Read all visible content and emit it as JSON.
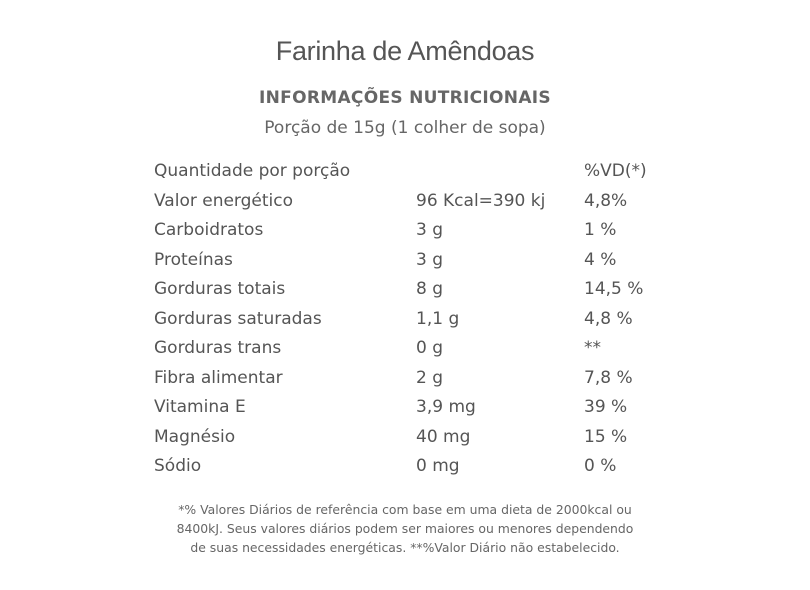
{
  "product_title": "Farinha de Amêndoas",
  "section_title": "INFORMAÇÕES NUTRICIONAIS",
  "serving": "Porção de 15g (1 colher de sopa)",
  "table": {
    "header": {
      "name": "Quantidade por porção",
      "amount": "",
      "vd": "%VD(*)"
    },
    "rows": [
      {
        "name": "Valor energético",
        "amount": "96 Kcal=390 kj",
        "vd": "4,8%"
      },
      {
        "name": "Carboidratos",
        "amount": "3 g",
        "vd": "1 %"
      },
      {
        "name": "Proteínas",
        "amount": "3 g",
        "vd": "4 %"
      },
      {
        "name": "Gorduras totais",
        "amount": "8 g",
        "vd": "14,5 %"
      },
      {
        "name": "Gorduras saturadas",
        "amount": "1,1 g",
        "vd": "4,8 %"
      },
      {
        "name": "Gorduras trans",
        "amount": "0 g",
        "vd": "**"
      },
      {
        "name": "Fibra alimentar",
        "amount": "2 g",
        "vd": "7,8 %"
      },
      {
        "name": "Vitamina E",
        "amount": "3,9 mg",
        "vd": "39 %"
      },
      {
        "name": "Magnésio",
        "amount": "40 mg",
        "vd": "15 %"
      },
      {
        "name": "Sódio",
        "amount": "0 mg",
        "vd": "0 %"
      }
    ]
  },
  "footnote": {
    "line1": "*% Valores Diários de referência com base em uma dieta de 2000kcal ou",
    "line2": "8400kJ. Seus valores diários podem ser maiores ou menores dependendo",
    "line3": "de suas necessidades energéticas.  **%Valor Diário não estabelecido."
  }
}
